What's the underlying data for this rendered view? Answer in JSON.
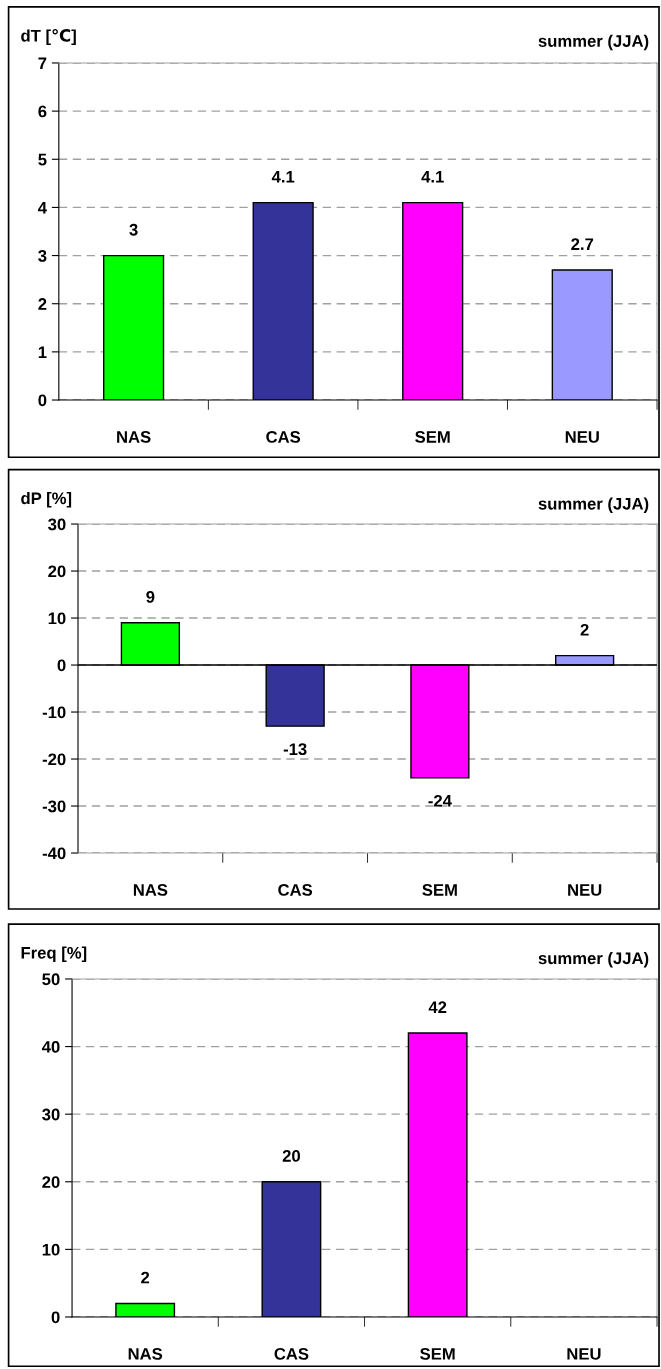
{
  "chart_data": [
    {
      "type": "bar",
      "title": "summer (JJA)",
      "ylabel": "dT [℃]",
      "categories": [
        "NAS",
        "CAS",
        "SEM",
        "NEU"
      ],
      "values": [
        3,
        4.1,
        4.1,
        2.7
      ],
      "colors": [
        "#00ff00",
        "#333399",
        "#ff00ff",
        "#9999ff"
      ],
      "ylim": [
        0,
        7
      ],
      "yticks": [
        0,
        1,
        2,
        3,
        4,
        5,
        6,
        7
      ],
      "grid": "y",
      "data_labels": true
    },
    {
      "type": "bar",
      "title": "summer (JJA)",
      "ylabel": "dP [%]",
      "categories": [
        "NAS",
        "CAS",
        "SEM",
        "NEU"
      ],
      "values": [
        9,
        -13,
        -24,
        2
      ],
      "colors": [
        "#00ff00",
        "#333399",
        "#ff00ff",
        "#9999ff"
      ],
      "ylim": [
        -40,
        30
      ],
      "yticks": [
        -40,
        -30,
        -20,
        -10,
        0,
        10,
        20,
        30
      ],
      "grid": "y",
      "data_labels": true
    },
    {
      "type": "bar",
      "title": "summer (JJA)",
      "ylabel": "Freq [%]",
      "categories": [
        "NAS",
        "CAS",
        "SEM",
        "NEU"
      ],
      "values": [
        2,
        20,
        42,
        null
      ],
      "value_labels": [
        "2",
        "20",
        "42",
        null
      ],
      "colors": [
        "#00ff00",
        "#333399",
        "#ff00ff",
        "#9999ff"
      ],
      "ylim": [
        0,
        50
      ],
      "yticks": [
        0,
        10,
        20,
        30,
        40,
        50
      ],
      "grid": "y"
    }
  ]
}
